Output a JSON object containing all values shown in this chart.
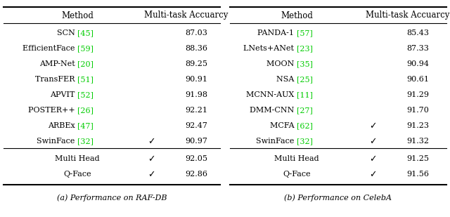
{
  "title_a": "(a) Performance on RAF-DB",
  "title_b": "(b) Performance on CelebA",
  "col_headers": [
    "Method",
    "Multi-task Accuarcy"
  ],
  "table_a": {
    "rows": [
      {
        "method": "SCN ",
        "ref": "[45]",
        "check": false,
        "value": "87.03"
      },
      {
        "method": "EfficientFace ",
        "ref": "[59]",
        "check": false,
        "value": "88.36"
      },
      {
        "method": "AMP-Net ",
        "ref": "[20]",
        "check": false,
        "value": "89.25"
      },
      {
        "method": "TransFER ",
        "ref": "[51]",
        "check": false,
        "value": "90.91"
      },
      {
        "method": "APVIT ",
        "ref": "[52]",
        "check": false,
        "value": "91.98"
      },
      {
        "method": "POSTER++ ",
        "ref": "[26]",
        "check": false,
        "value": "92.21"
      },
      {
        "method": "ARBEx ",
        "ref": "[47]",
        "check": false,
        "value": "92.47"
      },
      {
        "method": "SwinFace ",
        "ref": "[32]",
        "check": true,
        "value": "90.97"
      }
    ],
    "bottom_rows": [
      {
        "method": "Multi Head",
        "ref": "",
        "check": true,
        "value": "92.05"
      },
      {
        "method": "Q-Face",
        "ref": "",
        "check": true,
        "value": "92.86"
      }
    ]
  },
  "table_b": {
    "rows": [
      {
        "method": "PANDA-1 ",
        "ref": "[57]",
        "check": false,
        "value": "85.43"
      },
      {
        "method": "LNets+ANet ",
        "ref": "[23]",
        "check": false,
        "value": "87.33"
      },
      {
        "method": "MOON ",
        "ref": "[35]",
        "check": false,
        "value": "90.94"
      },
      {
        "method": "NSA ",
        "ref": "[25]",
        "check": false,
        "value": "90.61"
      },
      {
        "method": "MCNN-AUX ",
        "ref": "[11]",
        "check": false,
        "value": "91.29"
      },
      {
        "method": "DMM-CNN ",
        "ref": "[27]",
        "check": false,
        "value": "91.70"
      },
      {
        "method": "MCFA ",
        "ref": "[62]",
        "check": true,
        "value": "91.23"
      },
      {
        "method": "SwinFace ",
        "ref": "[32]",
        "check": true,
        "value": "91.32"
      }
    ],
    "bottom_rows": [
      {
        "method": "Multi Head",
        "ref": "",
        "check": true,
        "value": "91.25"
      },
      {
        "method": "Q-Face",
        "ref": "",
        "check": true,
        "value": "91.56"
      }
    ]
  },
  "ref_color": "#00CC00",
  "text_color": "#000000",
  "bg_color": "#FFFFFF",
  "line_color": "#000000",
  "fontsize": 8.0,
  "header_fontsize": 8.5
}
